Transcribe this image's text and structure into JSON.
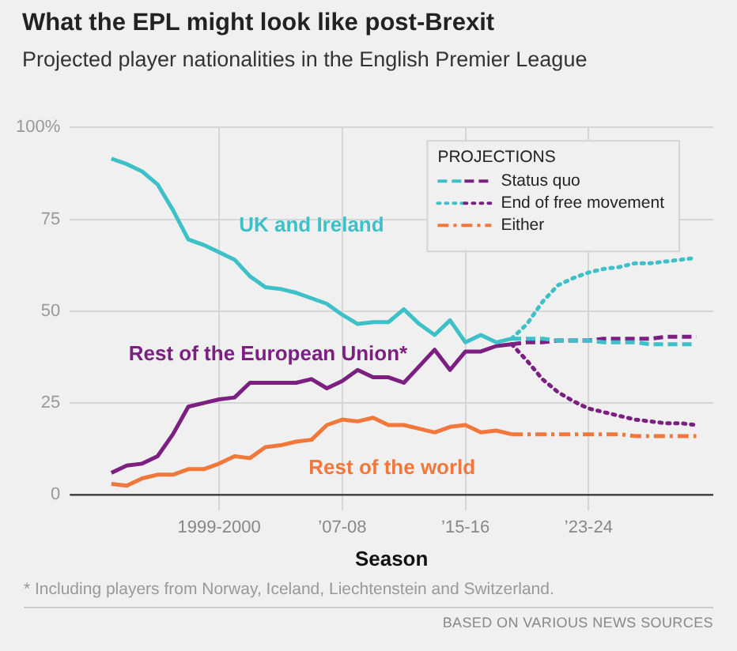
{
  "chart_data": {
    "type": "line",
    "title": "What the EPL might look like post-Brexit",
    "subtitle": "Projected player nationalities in the English Premier League",
    "xlabel": "Season",
    "legend_title": "PROJECTIONS",
    "legend": "top right",
    "grid": true,
    "marker": "none",
    "categories": [
      null,
      null,
      null,
      null,
      null,
      null,
      null,
      "1999-2000",
      null,
      null,
      null,
      null,
      null,
      null,
      null,
      "’07-08",
      null,
      null,
      null,
      null,
      null,
      null,
      null,
      "’15-16",
      null,
      null,
      null,
      null,
      null,
      null,
      null,
      "’23-24",
      null,
      null,
      null,
      null,
      null,
      null,
      null
    ],
    "ylim": [
      0,
      100
    ],
    "yticks": [
      0,
      25,
      50,
      75,
      {
        "value": 100,
        "label": "100%"
      }
    ],
    "series": [
      {
        "name": "UK and Ireland",
        "color": "#3ec0c8",
        "line_style": "solid",
        "values": [
          91.5,
          90,
          88,
          84.5,
          77.5,
          69.5,
          68,
          66,
          64,
          59.5,
          56.5,
          56,
          55,
          53.5,
          52,
          49,
          46.5,
          47,
          47,
          50.5,
          46.5,
          43.5,
          47.5,
          41.5,
          43.5,
          41.5,
          42.5,
          null,
          null,
          null,
          null,
          null,
          null,
          null,
          null,
          null,
          null,
          null,
          null
        ]
      },
      {
        "name": "Rest of the European Union*",
        "color": "#7b1f81",
        "line_style": "solid",
        "values": [
          6,
          8,
          8.5,
          10.5,
          16.5,
          24,
          25,
          26,
          26.5,
          30.5,
          30.5,
          30.5,
          30.5,
          31.5,
          29,
          31,
          34,
          32,
          32,
          30.5,
          35,
          39.5,
          34,
          39,
          39,
          40.5,
          41,
          null,
          null,
          null,
          null,
          null,
          null,
          null,
          null,
          null,
          null,
          null,
          null
        ]
      },
      {
        "name": "Rest of the world",
        "color": "#f2773a",
        "line_style": "solid",
        "values": [
          3,
          2.5,
          4.5,
          5.5,
          5.5,
          7,
          7,
          8.5,
          10.5,
          10,
          13,
          13.5,
          14.5,
          15,
          19,
          20.5,
          20,
          21,
          19,
          19,
          18,
          17,
          18.5,
          19,
          17,
          17.5,
          16.5,
          null,
          null,
          null,
          null,
          null,
          null,
          null,
          null,
          null,
          null,
          null,
          null
        ]
      },
      {
        "name": "Status quo",
        "color": "#3ec0c8",
        "line_style": "dashed",
        "values": [
          null,
          null,
          null,
          null,
          null,
          null,
          null,
          null,
          null,
          null,
          null,
          null,
          null,
          null,
          null,
          null,
          null,
          null,
          null,
          null,
          null,
          null,
          null,
          null,
          null,
          null,
          42.5,
          42.5,
          42.5,
          42,
          42,
          42,
          41.5,
          41.5,
          41.5,
          41,
          41,
          41,
          41
        ]
      },
      {
        "color": "#7b1f81",
        "line_style": "dashed",
        "values": [
          null,
          null,
          null,
          null,
          null,
          null,
          null,
          null,
          null,
          null,
          null,
          null,
          null,
          null,
          null,
          null,
          null,
          null,
          null,
          null,
          null,
          null,
          null,
          null,
          null,
          null,
          41,
          41.5,
          41.5,
          42,
          42,
          42,
          42.5,
          42.5,
          42.5,
          42.5,
          43,
          43,
          43
        ]
      },
      {
        "name": "End of free movement",
        "color": "#3ec0c8",
        "line_style": "dotted",
        "values": [
          null,
          null,
          null,
          null,
          null,
          null,
          null,
          null,
          null,
          null,
          null,
          null,
          null,
          null,
          null,
          null,
          null,
          null,
          null,
          null,
          null,
          null,
          null,
          null,
          null,
          null,
          42.5,
          46.5,
          52.5,
          57,
          59,
          60.5,
          61.5,
          62,
          63,
          63,
          63.5,
          64,
          64.5
        ]
      },
      {
        "color": "#7b1f81",
        "line_style": "dotted",
        "values": [
          null,
          null,
          null,
          null,
          null,
          null,
          null,
          null,
          null,
          null,
          null,
          null,
          null,
          null,
          null,
          null,
          null,
          null,
          null,
          null,
          null,
          null,
          null,
          null,
          null,
          null,
          41,
          36.5,
          31.5,
          28,
          25.5,
          23.5,
          22.5,
          21.5,
          20.5,
          20,
          19.5,
          19.5,
          19
        ]
      },
      {
        "name": "Either",
        "color": "#f2773a",
        "line_style": "dashdot",
        "values": [
          null,
          null,
          null,
          null,
          null,
          null,
          null,
          null,
          null,
          null,
          null,
          null,
          null,
          null,
          null,
          null,
          null,
          null,
          null,
          null,
          null,
          null,
          null,
          null,
          null,
          null,
          16.5,
          16.5,
          16.5,
          16.5,
          16.5,
          16.5,
          16.5,
          16.5,
          16,
          16,
          16,
          16,
          16
        ]
      }
    ],
    "annotations": [
      "* Including players from Norway, Iceland, Liechtenstein and Switzerland.",
      "BASED ON VARIOUS NEWS SOURCES"
    ]
  }
}
